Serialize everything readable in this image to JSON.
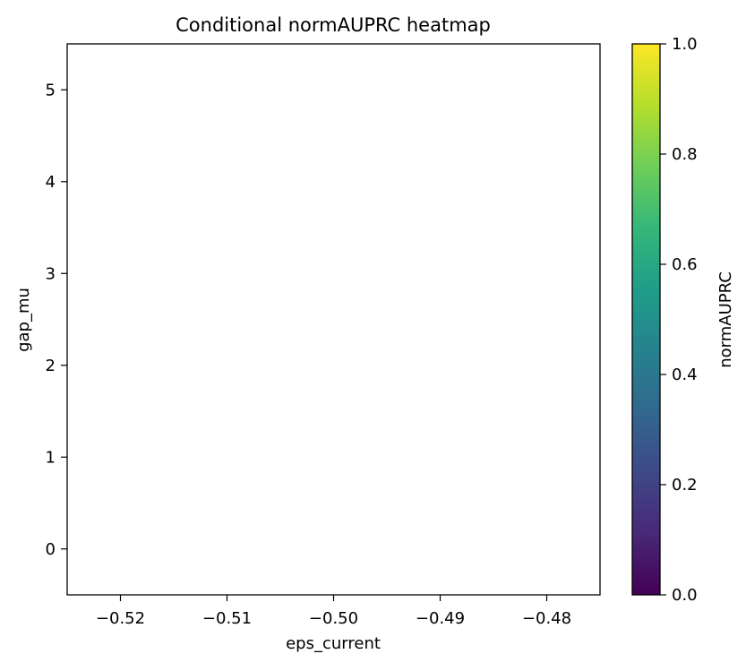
{
  "chart_data": {
    "type": "heatmap",
    "title": "Conditional normAUPRC heatmap",
    "xlabel": "eps_current",
    "ylabel": "gap_mu",
    "xlim": [
      -0.525,
      -0.475
    ],
    "ylim": [
      -0.5,
      5.5
    ],
    "xticks": [
      -0.52,
      -0.51,
      -0.5,
      -0.49,
      -0.48
    ],
    "xtick_labels": [
      "−0.52",
      "−0.51",
      "−0.50",
      "−0.49",
      "−0.48"
    ],
    "yticks": [
      0,
      1,
      2,
      3,
      4,
      5
    ],
    "ytick_labels": [
      "0",
      "1",
      "2",
      "3",
      "4",
      "5"
    ],
    "cells": [],
    "colorbar": {
      "label": "normAUPRC",
      "colormap": "viridis",
      "range": [
        0.0,
        1.0
      ],
      "ticks": [
        0.0,
        0.2,
        0.4,
        0.6,
        0.8,
        1.0
      ],
      "tick_labels": [
        "0.0",
        "0.2",
        "0.4",
        "0.6",
        "0.8",
        "1.0"
      ],
      "stops": [
        "#440154",
        "#482878",
        "#3e4989",
        "#31688e",
        "#26828e",
        "#1f9e89",
        "#35b779",
        "#6ece58",
        "#b5de2b",
        "#fde725"
      ]
    }
  }
}
